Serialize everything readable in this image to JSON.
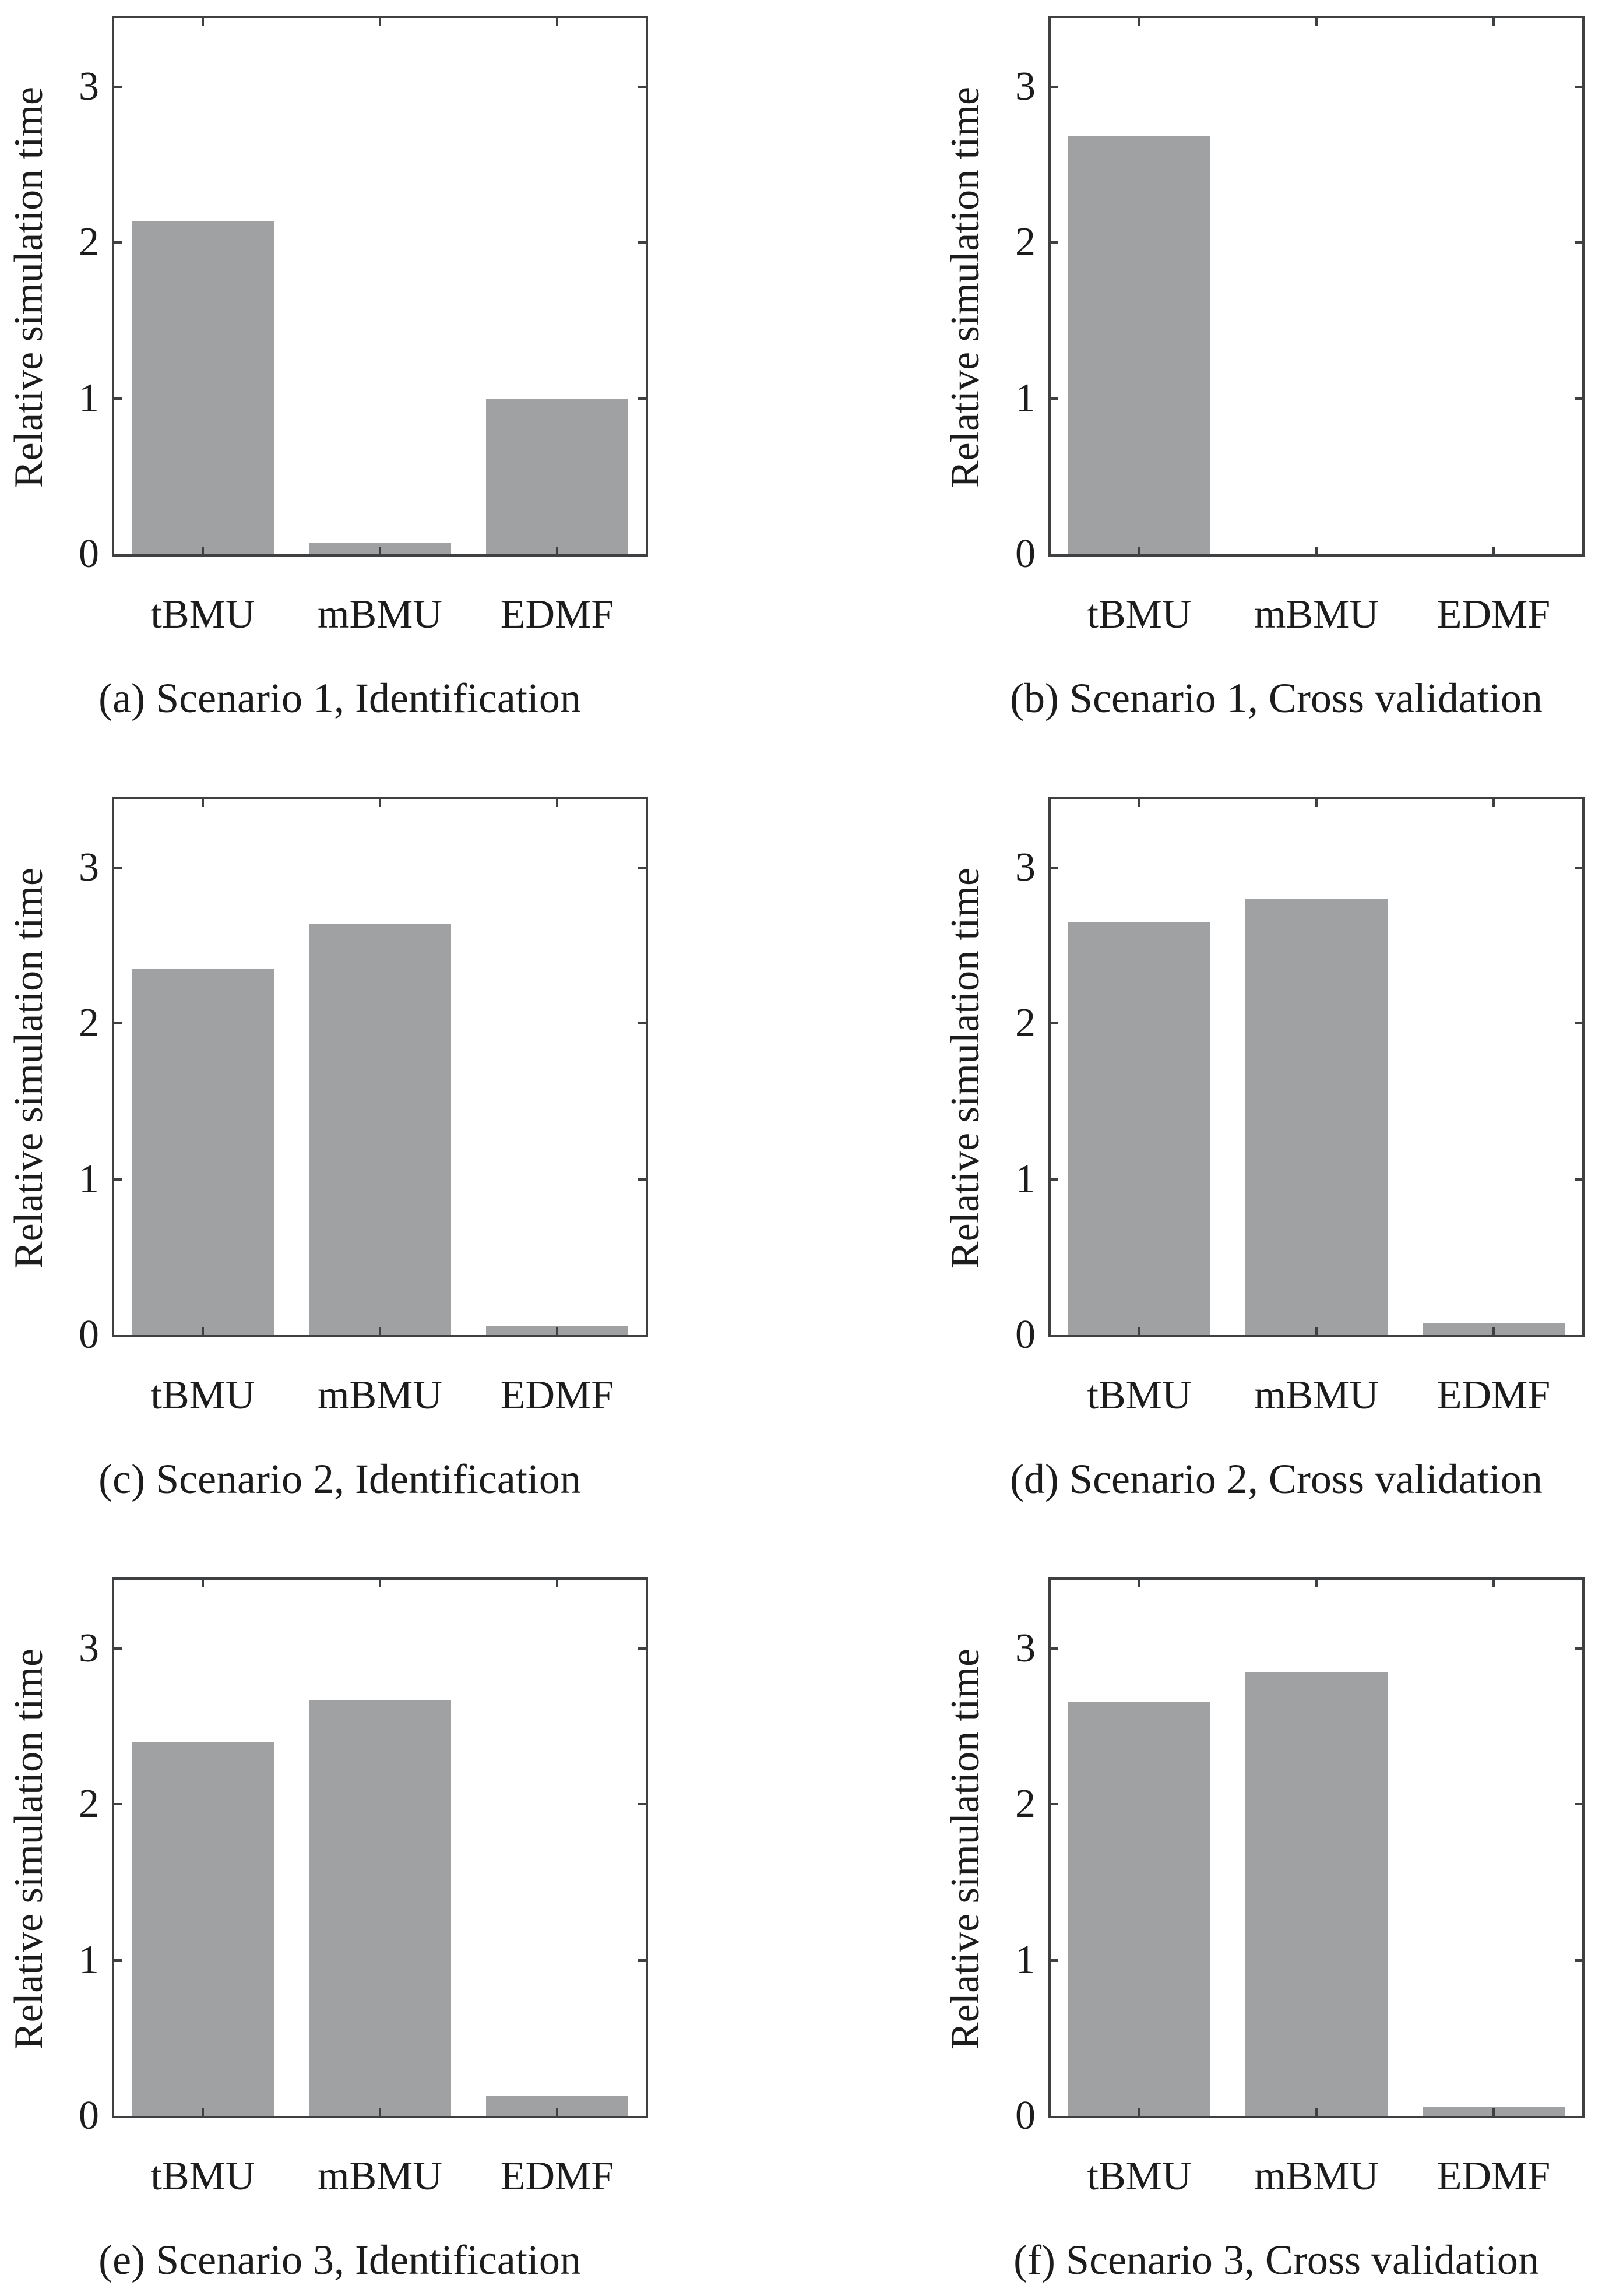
{
  "figure": {
    "ylabel": "Relative simulation time",
    "categories": [
      "tBMU",
      "mBMU",
      "EDMF"
    ],
    "ytick_labels": [
      "0",
      "1",
      "2",
      "3"
    ]
  },
  "colors": {
    "background": "#ffffff",
    "bar_fill": "#9fa1a3",
    "axis": "#3f4042",
    "text": "#1c1c1c"
  },
  "chart_data": [
    {
      "type": "bar",
      "panel_label": "a",
      "title": "(a) Scenario 1, Identification",
      "categories": [
        "tBMU",
        "mBMU",
        "EDMF"
      ],
      "values": [
        2.14,
        0.07,
        1.0
      ],
      "xlabel": "",
      "ylabel": "Relative simulation time",
      "yticks": [
        0,
        1,
        2,
        3
      ],
      "ylim": [
        0,
        3.44
      ],
      "grid": false,
      "legend": "none"
    },
    {
      "type": "bar",
      "panel_label": "b",
      "title": "(b) Scenario 1, Cross validation",
      "categories": [
        "tBMU",
        "mBMU",
        "EDMF"
      ],
      "values": [
        2.68,
        0,
        0
      ],
      "xlabel": "",
      "ylabel": "Relative simulation time",
      "yticks": [
        0,
        1,
        2,
        3
      ],
      "ylim": [
        0,
        3.44
      ],
      "grid": false,
      "legend": "none"
    },
    {
      "type": "bar",
      "panel_label": "c",
      "title": "(c) Scenario 2, Identification",
      "categories": [
        "tBMU",
        "mBMU",
        "EDMF"
      ],
      "values": [
        2.35,
        2.64,
        0.06
      ],
      "xlabel": "",
      "ylabel": "Relative simulation time",
      "yticks": [
        0,
        1,
        2,
        3
      ],
      "ylim": [
        0,
        3.44
      ],
      "grid": false,
      "legend": "none"
    },
    {
      "type": "bar",
      "panel_label": "d",
      "title": "(d) Scenario 2, Cross validation",
      "categories": [
        "tBMU",
        "mBMU",
        "EDMF"
      ],
      "values": [
        2.65,
        2.8,
        0.08
      ],
      "xlabel": "",
      "ylabel": "Relative simulation time",
      "yticks": [
        0,
        1,
        2,
        3
      ],
      "ylim": [
        0,
        3.44
      ],
      "grid": false,
      "legend": "none"
    },
    {
      "type": "bar",
      "panel_label": "e",
      "title": "(e) Scenario 3, Identification",
      "categories": [
        "tBMU",
        "mBMU",
        "EDMF"
      ],
      "values": [
        2.4,
        2.67,
        0.13
      ],
      "xlabel": "",
      "ylabel": "Relative simulation time",
      "yticks": [
        0,
        1,
        2,
        3
      ],
      "ylim": [
        0,
        3.44
      ],
      "grid": false,
      "legend": "none"
    },
    {
      "type": "bar",
      "panel_label": "f",
      "title": "(f) Scenario 3, Cross validation",
      "categories": [
        "tBMU",
        "mBMU",
        "EDMF"
      ],
      "values": [
        2.66,
        2.85,
        0.06
      ],
      "xlabel": "",
      "ylabel": "Relative simulation time",
      "yticks": [
        0,
        1,
        2,
        3
      ],
      "ylim": [
        0,
        3.44
      ],
      "grid": false,
      "legend": "none"
    }
  ]
}
